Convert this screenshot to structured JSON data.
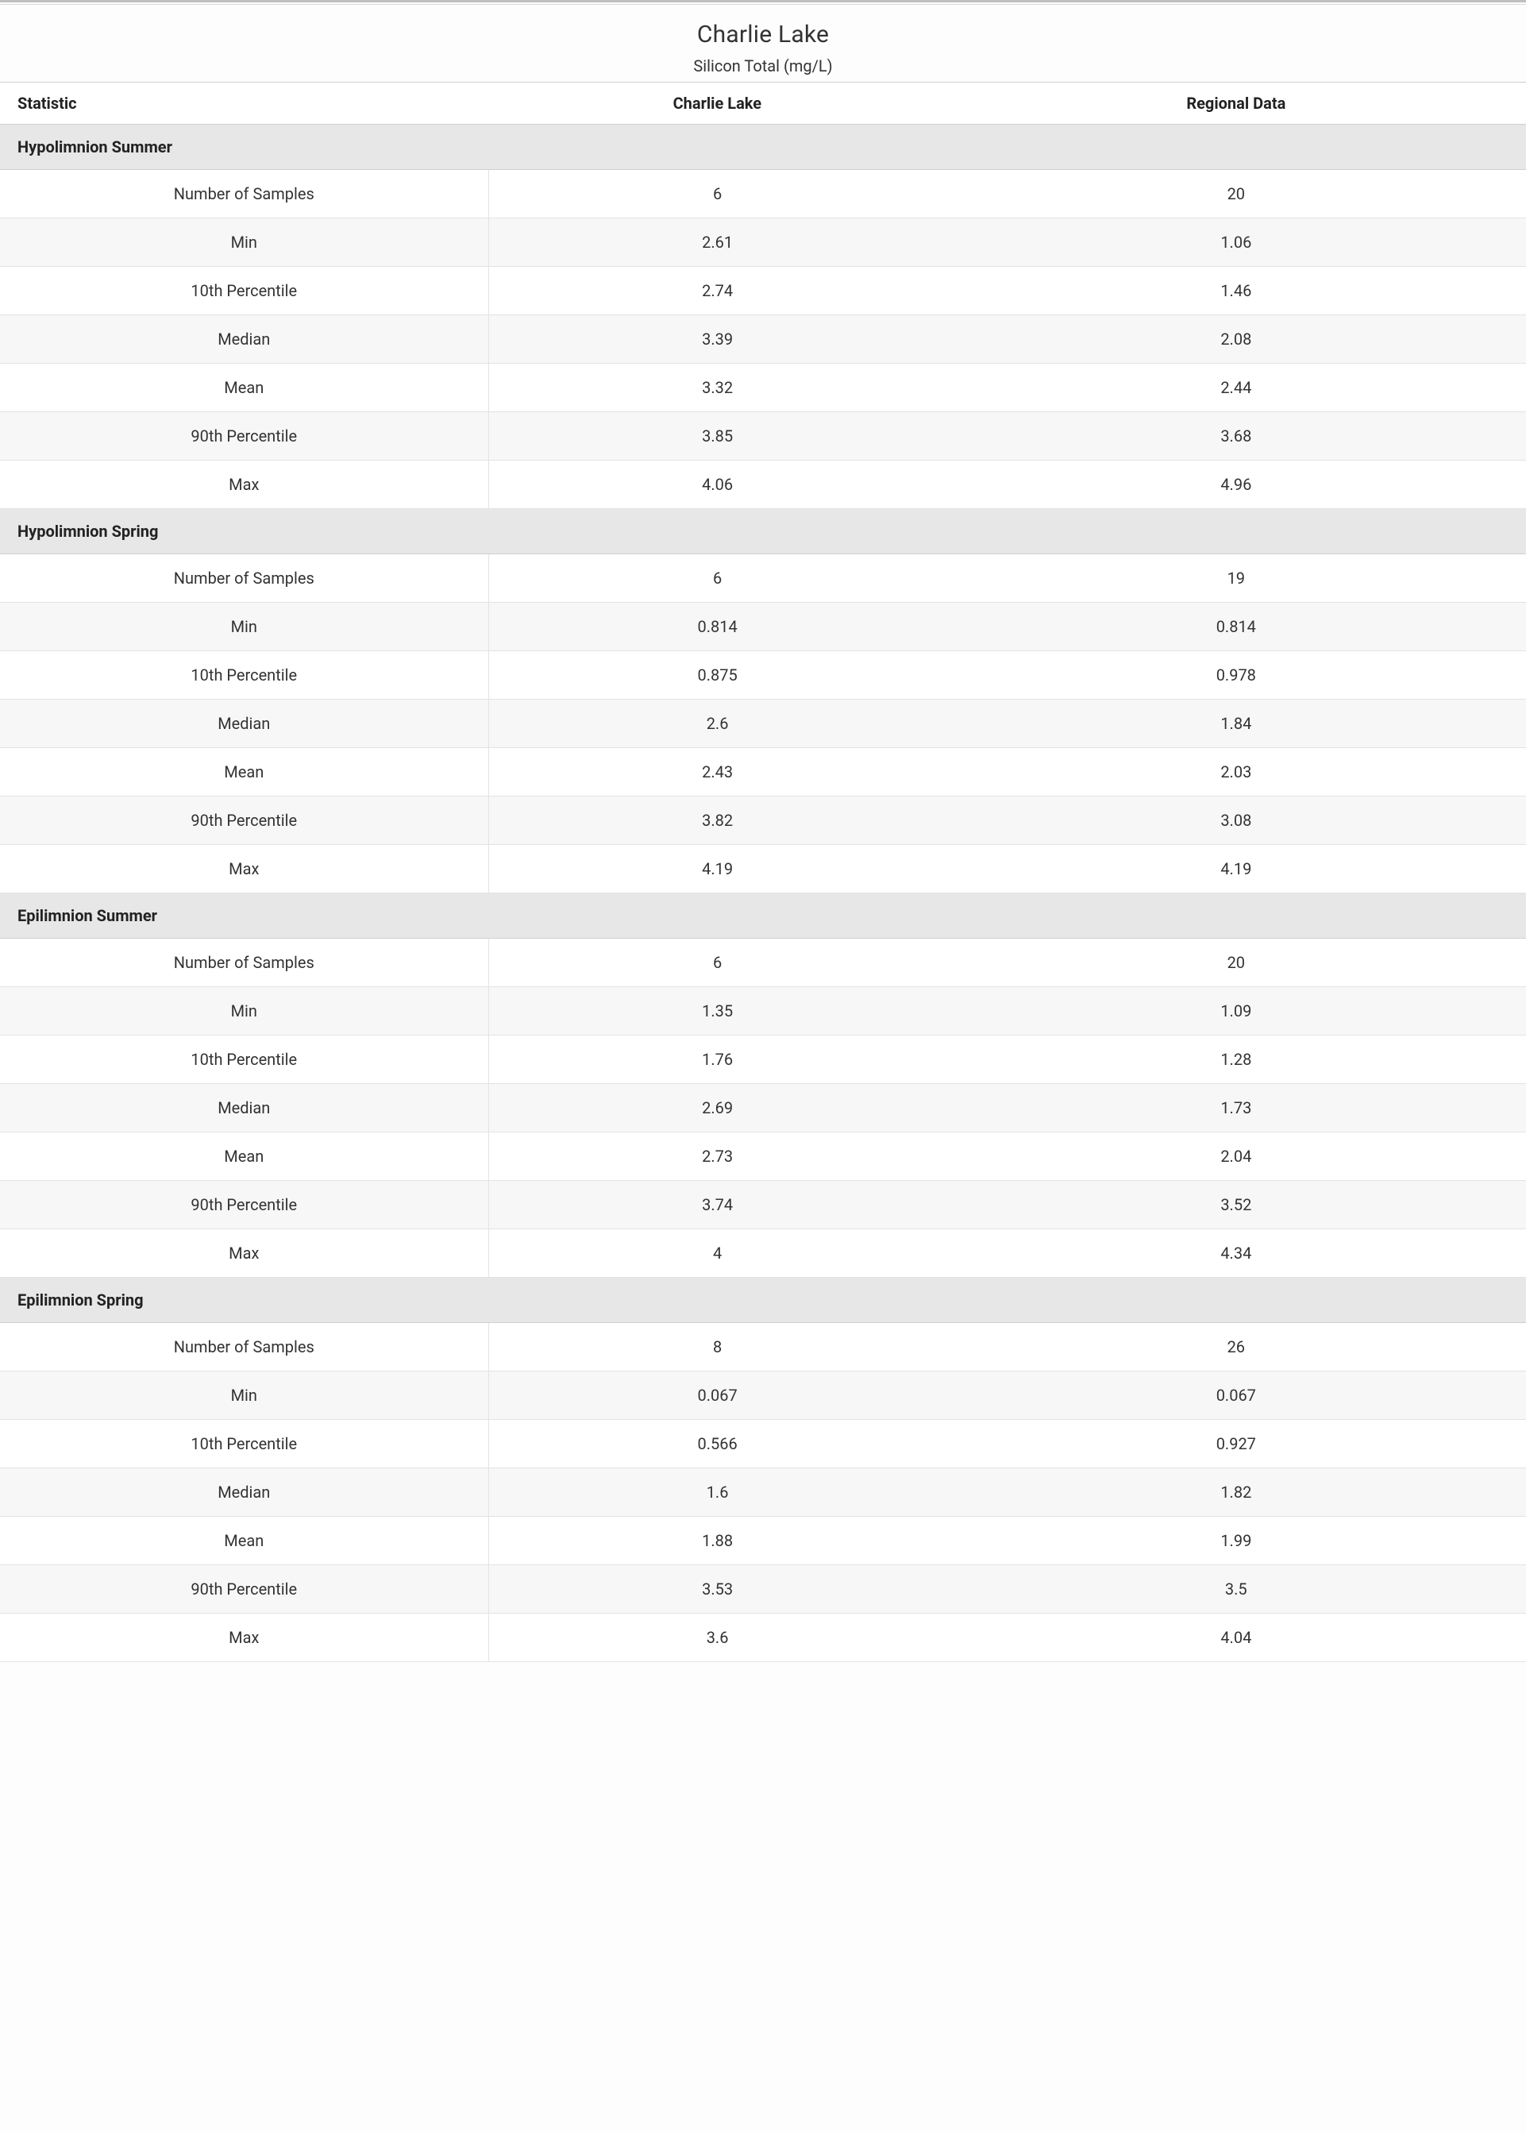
{
  "title": "Charlie Lake",
  "subtitle": "Silicon Total (mg/L)",
  "columns": {
    "stat": "Statistic",
    "lake": "Charlie Lake",
    "regional": "Regional Data"
  },
  "stat_labels": [
    "Number of Samples",
    "Min",
    "10th Percentile",
    "Median",
    "Mean",
    "90th Percentile",
    "Max"
  ],
  "sections": [
    {
      "name": "Hypolimnion Summer",
      "lake": [
        "6",
        "2.61",
        "2.74",
        "3.39",
        "3.32",
        "3.85",
        "4.06"
      ],
      "regional": [
        "20",
        "1.06",
        "1.46",
        "2.08",
        "2.44",
        "3.68",
        "4.96"
      ]
    },
    {
      "name": "Hypolimnion Spring",
      "lake": [
        "6",
        "0.814",
        "0.875",
        "2.6",
        "2.43",
        "3.82",
        "4.19"
      ],
      "regional": [
        "19",
        "0.814",
        "0.978",
        "1.84",
        "2.03",
        "3.08",
        "4.19"
      ]
    },
    {
      "name": "Epilimnion Summer",
      "lake": [
        "6",
        "1.35",
        "1.76",
        "2.69",
        "2.73",
        "3.74",
        "4"
      ],
      "regional": [
        "20",
        "1.09",
        "1.28",
        "1.73",
        "2.04",
        "3.52",
        "4.34"
      ]
    },
    {
      "name": "Epilimnion Spring",
      "lake": [
        "8",
        "0.067",
        "0.566",
        "1.6",
        "1.88",
        "3.53",
        "3.6"
      ],
      "regional": [
        "26",
        "0.067",
        "0.927",
        "1.82",
        "1.99",
        "3.5",
        "4.04"
      ]
    }
  ],
  "style": {
    "type": "table",
    "background_color": "#fdfdfd",
    "section_bg": "#e7e7e7",
    "row_bg": "#ffffff",
    "row_alt_bg": "#f7f7f7",
    "border_color": "#e3e3e3",
    "header_border_color": "#cfcfcf",
    "top_rule_color": "#bfbfbf",
    "text_color": "#333333",
    "title_fontsize": 30,
    "subtitle_fontsize": 20,
    "header_fontsize": 20,
    "cell_fontsize": 20,
    "font_family": "Segoe UI",
    "col_widths_pct": [
      32,
      30,
      38
    ],
    "cell_text_align": "center",
    "stat_col_right_border": true
  }
}
